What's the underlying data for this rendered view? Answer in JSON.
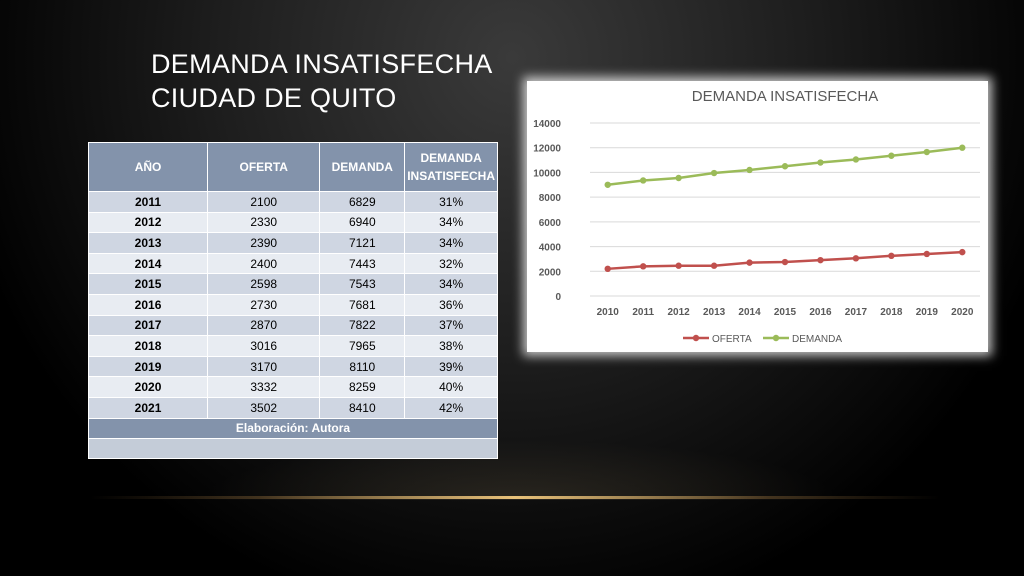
{
  "slide": {
    "title_line1": "DEMANDA INSATISFECHA",
    "title_line2": "CIUDAD DE QUITO"
  },
  "table": {
    "headers": [
      "AÑO",
      "OFERTA",
      "DEMANDA",
      "DEMANDA INSATISFECHA"
    ],
    "rows": [
      [
        "2011",
        "2100",
        "6829",
        "31%"
      ],
      [
        "2012",
        "2330",
        "6940",
        "34%"
      ],
      [
        "2013",
        "2390",
        "7121",
        "34%"
      ],
      [
        "2014",
        "2400",
        "7443",
        "32%"
      ],
      [
        "2015",
        "2598",
        "7543",
        "34%"
      ],
      [
        "2016",
        "2730",
        "7681",
        "36%"
      ],
      [
        "2017",
        "2870",
        "7822",
        "37%"
      ],
      [
        "2018",
        "3016",
        "7965",
        "38%"
      ],
      [
        "2019",
        "3170",
        "8110",
        "39%"
      ],
      [
        "2020",
        "3332",
        "8259",
        "40%"
      ],
      [
        "2021",
        "3502",
        "8410",
        "42%"
      ]
    ],
    "footer": "Elaboración: Autora"
  },
  "colors": {
    "header_bg": "#8393ab",
    "oferta": "#c0504d",
    "demanda": "#9bbb59"
  },
  "chart_data": {
    "type": "line",
    "title": "DEMANDA INSATISFECHA",
    "categories": [
      "2010",
      "2011",
      "2012",
      "2013",
      "2014",
      "2015",
      "2016",
      "2017",
      "2018",
      "2019",
      "2020"
    ],
    "series": [
      {
        "name": "OFERTA",
        "color": "#c0504d",
        "values": [
          2200,
          2400,
          2450,
          2450,
          2700,
          2750,
          2900,
          3050,
          3250,
          3400,
          3550
        ]
      },
      {
        "name": "DEMANDA",
        "color": "#9bbb59",
        "values": [
          9000,
          9350,
          9550,
          9950,
          10200,
          10500,
          10800,
          11050,
          11350,
          11650,
          12000
        ]
      }
    ],
    "yticks": [
      "0",
      "2000",
      "4000",
      "6000",
      "8000",
      "10000",
      "12000",
      "14000"
    ],
    "ylim": [
      0,
      14000
    ],
    "grid": true,
    "legend": "bottom"
  }
}
